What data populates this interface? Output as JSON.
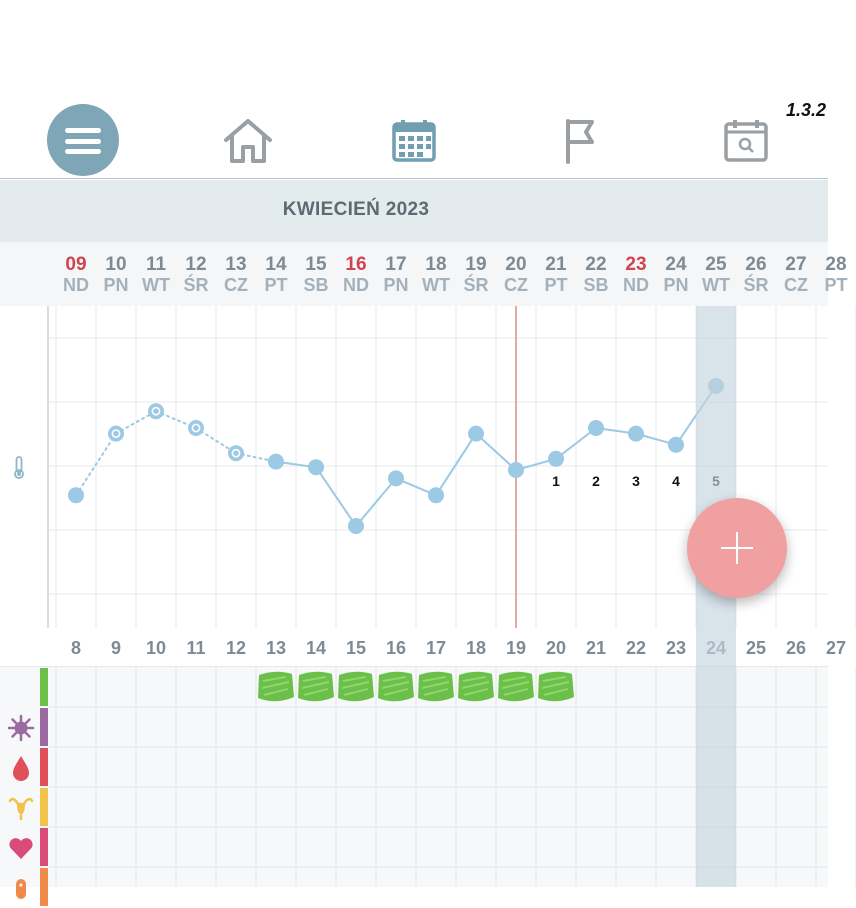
{
  "version": "1.3.2",
  "nav": {
    "items": [
      {
        "name": "menu-icon"
      },
      {
        "name": "home-icon"
      },
      {
        "name": "calendar-icon"
      },
      {
        "name": "flag-icon"
      },
      {
        "name": "calendar-search-icon"
      }
    ]
  },
  "month_title": "KWIECIEŃ 2023",
  "days": [
    {
      "num": "09",
      "dow": "ND",
      "holiday": true
    },
    {
      "num": "10",
      "dow": "PN",
      "holiday": false
    },
    {
      "num": "11",
      "dow": "WT",
      "holiday": false
    },
    {
      "num": "12",
      "dow": "ŚR",
      "holiday": false
    },
    {
      "num": "13",
      "dow": "CZ",
      "holiday": false
    },
    {
      "num": "14",
      "dow": "PT",
      "holiday": false
    },
    {
      "num": "15",
      "dow": "SB",
      "holiday": false
    },
    {
      "num": "16",
      "dow": "ND",
      "holiday": true
    },
    {
      "num": "17",
      "dow": "PN",
      "holiday": false
    },
    {
      "num": "18",
      "dow": "WT",
      "holiday": false
    },
    {
      "num": "19",
      "dow": "ŚR",
      "holiday": false
    },
    {
      "num": "20",
      "dow": "CZ",
      "holiday": false
    },
    {
      "num": "21",
      "dow": "PT",
      "holiday": false
    },
    {
      "num": "22",
      "dow": "SB",
      "holiday": false
    },
    {
      "num": "23",
      "dow": "ND",
      "holiday": true
    },
    {
      "num": "24",
      "dow": "PN",
      "holiday": false
    },
    {
      "num": "25",
      "dow": "WT",
      "holiday": false
    },
    {
      "num": "26",
      "dow": "ŚR",
      "holiday": false
    },
    {
      "num": "27",
      "dow": "CZ",
      "holiday": false
    },
    {
      "num": "28",
      "dow": "PT",
      "holiday": false
    }
  ],
  "cycle_days": [
    "8",
    "9",
    "10",
    "11",
    "12",
    "13",
    "14",
    "15",
    "16",
    "17",
    "18",
    "19",
    "20",
    "21",
    "22",
    "23",
    "24",
    "25",
    "26",
    "27"
  ],
  "temperature": {
    "levels": [
      0.36,
      0.58,
      0.66,
      0.6,
      0.51,
      0.48,
      0.46,
      0.25,
      0.42,
      0.36,
      0.58,
      0.45,
      0.49,
      0.6,
      0.58,
      0.54,
      0.75
    ],
    "dotted_until_index": 5,
    "hollow_indices": [
      1,
      2,
      3,
      4
    ],
    "post_ovulation_labels": [
      {
        "index": 12,
        "label": "1"
      },
      {
        "index": 13,
        "label": "2"
      },
      {
        "index": 14,
        "label": "3"
      },
      {
        "index": 15,
        "label": "4"
      },
      {
        "index": 16,
        "label": "5"
      }
    ],
    "ovulation_line_index": 11,
    "today_index": 16
  },
  "fertile_marks_indices": [
    5,
    6,
    7,
    8,
    9,
    10,
    11,
    12
  ],
  "tracks": [
    {
      "name": "fertile-track",
      "icon": "",
      "color": "#6cc04a"
    },
    {
      "name": "symptoms-track",
      "icon": "virus-icon",
      "color": "#9b6aa3"
    },
    {
      "name": "bleeding-track",
      "icon": "blood-drop-icon",
      "color": "#e0505a"
    },
    {
      "name": "cervix-track",
      "icon": "uterus-icon",
      "color": "#f2c24c"
    },
    {
      "name": "intercourse-track",
      "icon": "heart-icon",
      "color": "#d94b78"
    },
    {
      "name": "pill-track",
      "icon": "pill-icon",
      "color": "#ef8a4a"
    }
  ],
  "colors": {
    "accent": "#7fa6b6",
    "point": "#9cc9e3",
    "holiday": "#d0444e",
    "fab": "#f1a0a2",
    "fertile_mark": "#6cc04a",
    "ovulation_line": "#e08a8a"
  }
}
